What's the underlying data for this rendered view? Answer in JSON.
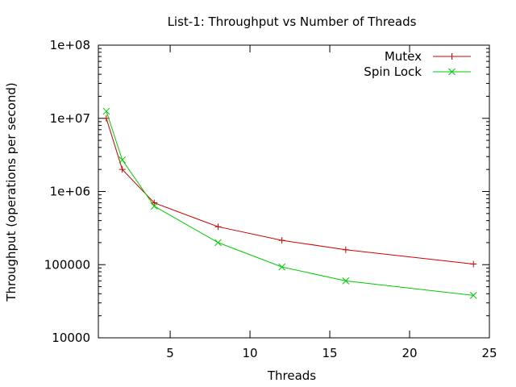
{
  "chart_data": {
    "type": "line",
    "title": "List-1: Throughput vs Number of Threads",
    "xlabel": "Threads",
    "ylabel": "Throughput (operations per second)",
    "xlim": [
      0.5,
      25
    ],
    "ylim": [
      10000,
      100000000
    ],
    "yscale": "log",
    "xticks": [
      5,
      10,
      15,
      20,
      25
    ],
    "xtick_labels": [
      "5",
      "10",
      "15",
      "20",
      "25"
    ],
    "yticks": [
      10000,
      100000,
      1000000,
      10000000,
      100000000
    ],
    "ytick_labels": [
      "10000",
      "100000",
      "1e+06",
      "1e+07",
      "1e+08"
    ],
    "grid": false,
    "legend_position": "top-right",
    "series": [
      {
        "name": "Mutex",
        "color": "#cc0000",
        "marker": "plus",
        "x": [
          1,
          2,
          4,
          8,
          12,
          16,
          24
        ],
        "y": [
          10000000,
          2000000,
          700000,
          330000,
          215000,
          160000,
          102000
        ]
      },
      {
        "name": "Spin Lock",
        "color": "#00cc00",
        "marker": "cross",
        "x": [
          1,
          2,
          4,
          8,
          12,
          16,
          24
        ],
        "y": [
          12500000,
          2700000,
          630000,
          200000,
          93000,
          60000,
          38000
        ]
      }
    ]
  }
}
